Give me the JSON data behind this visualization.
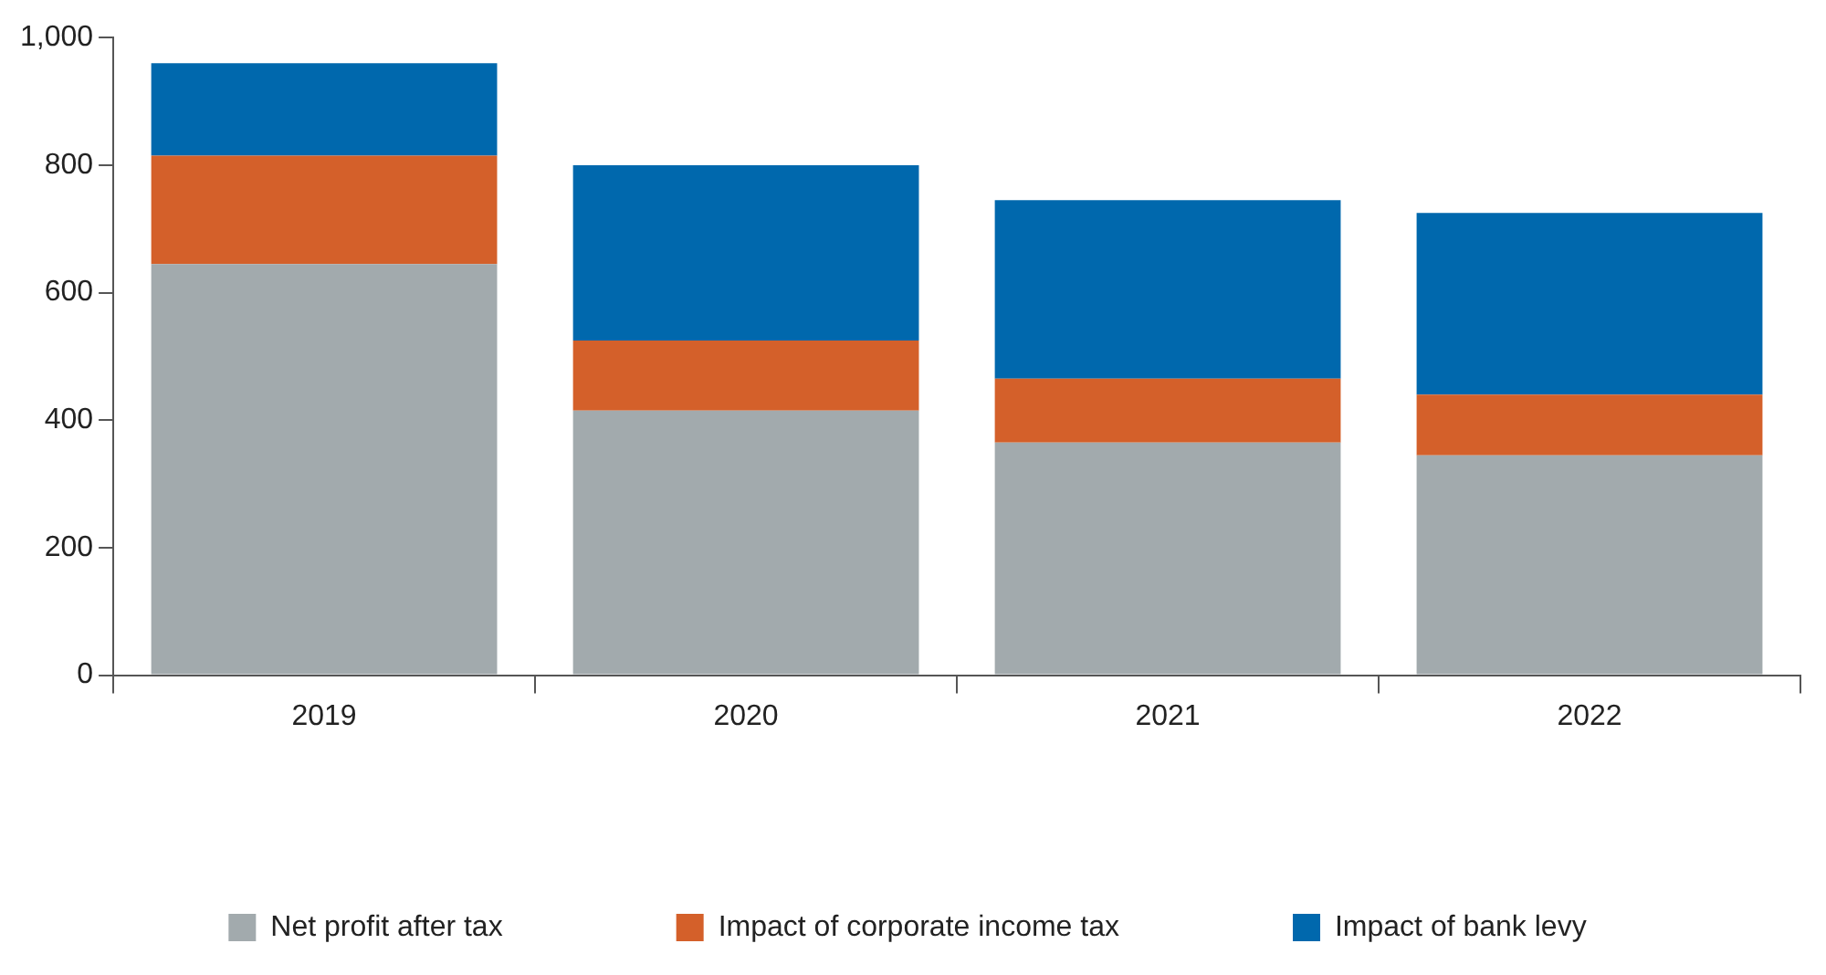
{
  "chart_data": {
    "type": "bar",
    "stacked": true,
    "categories": [
      "2019",
      "2020",
      "2021",
      "2022"
    ],
    "series": [
      {
        "name": "Net profit after tax",
        "color": "#a2aaad",
        "values": [
          645,
          415,
          365,
          345
        ]
      },
      {
        "name": "Impact of corporate income tax",
        "color": "#d4602a",
        "values": [
          170,
          110,
          100,
          95
        ]
      },
      {
        "name": "Impact of bank levy",
        "color": "#0068ad",
        "values": [
          145,
          275,
          280,
          285
        ]
      }
    ],
    "ylim": [
      0,
      1000
    ],
    "yticks": [
      0,
      200,
      400,
      600,
      800,
      {
        "value": 1000,
        "label": "1,000"
      }
    ],
    "grid": false,
    "legend": "bottom"
  }
}
